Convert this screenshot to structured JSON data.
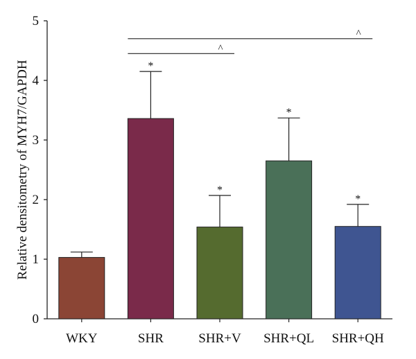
{
  "chart_data": {
    "type": "bar",
    "title": "",
    "xlabel": "",
    "ylabel": "Relative densitometry of MYH7/GAPDH",
    "ylim": [
      0,
      5
    ],
    "yticks": [
      "0",
      "1",
      "2",
      "3",
      "4",
      "5"
    ],
    "grid": false,
    "categories": [
      "WKY",
      "SHR",
      "SHR+V",
      "SHR+QL",
      "SHR+QH"
    ],
    "values": [
      1.03,
      3.36,
      1.54,
      2.65,
      1.55
    ],
    "errors": [
      0.09,
      0.79,
      0.53,
      0.72,
      0.37
    ],
    "colors": [
      "#8B4535",
      "#7A2A4A",
      "#556B2F",
      "#4A7058",
      "#3F5591"
    ],
    "markers": [
      "",
      "*",
      "*",
      "*",
      "*"
    ],
    "brackets": [
      {
        "from": "SHR",
        "to": "SHR+V",
        "y": 4.45,
        "label": "^"
      },
      {
        "from": "SHR",
        "to": "SHR+QH",
        "y": 4.7,
        "label": "^"
      }
    ]
  }
}
